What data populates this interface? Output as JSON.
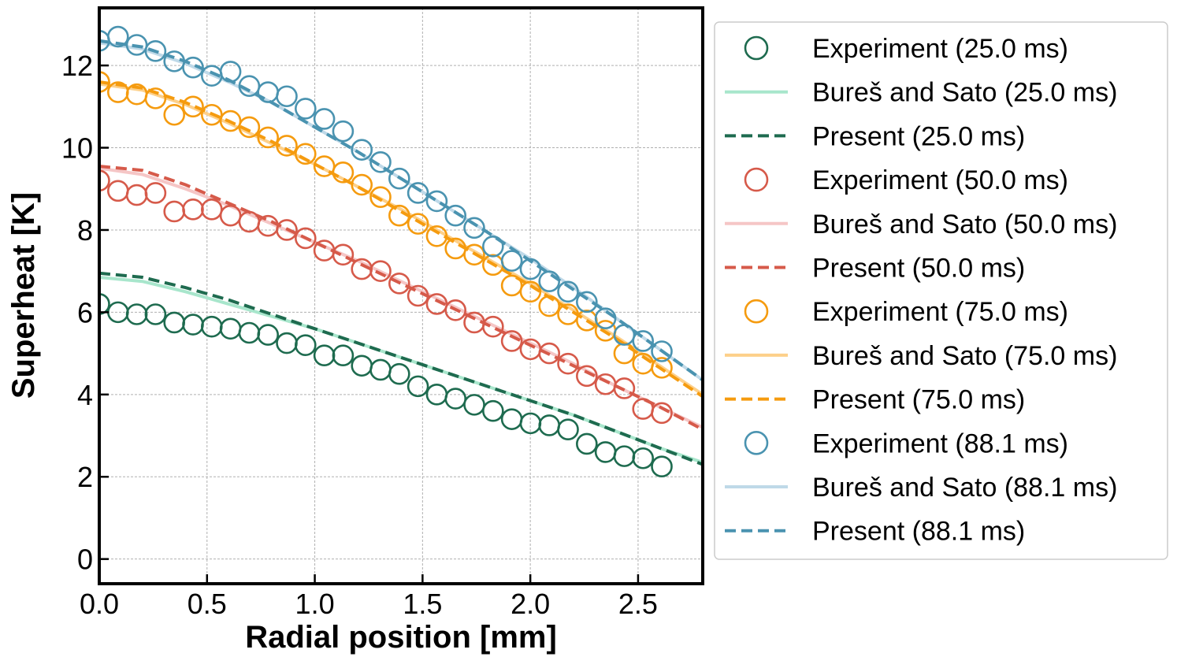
{
  "chart_data": {
    "type": "scatter",
    "xlabel": "Radial position [mm]",
    "ylabel": "Superheat [K]",
    "xlim": [
      0.0,
      2.8
    ],
    "ylim": [
      -0.6,
      13.4
    ],
    "xticks": [
      "0.0",
      "0.5",
      "1.0",
      "1.5",
      "2.0",
      "2.5"
    ],
    "xtick_values": [
      0.0,
      0.5,
      1.0,
      1.5,
      2.0,
      2.5
    ],
    "yticks": [
      "0",
      "2",
      "4",
      "6",
      "8",
      "10",
      "12"
    ],
    "ytick_values": [
      0,
      2,
      4,
      6,
      8,
      10,
      12
    ],
    "grid": true,
    "legend_position": "right, outside plot area",
    "experiment_x": [
      0.0,
      0.087,
      0.174,
      0.261,
      0.348,
      0.435,
      0.522,
      0.609,
      0.696,
      0.783,
      0.87,
      0.957,
      1.044,
      1.131,
      1.218,
      1.305,
      1.392,
      1.479,
      1.566,
      1.653,
      1.74,
      1.827,
      1.914,
      2.001,
      2.088,
      2.175,
      2.262,
      2.349,
      2.436,
      2.523,
      2.61
    ],
    "series": [
      {
        "name": "Experiment (25.0 ms)",
        "kind": "experiment",
        "color": "#1e6b4f",
        "values": [
          6.2,
          6.0,
          5.95,
          5.95,
          5.75,
          5.7,
          5.65,
          5.6,
          5.5,
          5.45,
          5.25,
          5.2,
          4.95,
          4.95,
          4.7,
          4.6,
          4.5,
          4.2,
          4.0,
          3.9,
          3.75,
          3.6,
          3.4,
          3.3,
          3.25,
          3.15,
          2.8,
          2.6,
          2.5,
          2.45,
          2.25
        ]
      },
      {
        "name": "Bureš and Sato (25.0 ms)",
        "kind": "model",
        "color": "#a8e6cc",
        "x": [
          0.0,
          0.2,
          0.4,
          0.6,
          0.8,
          1.0,
          1.2,
          1.4,
          1.6,
          1.8,
          2.0,
          2.2,
          2.4,
          2.6,
          2.8
        ],
        "values": [
          6.85,
          6.75,
          6.5,
          6.2,
          5.9,
          5.6,
          5.25,
          4.9,
          4.55,
          4.2,
          3.85,
          3.5,
          3.1,
          2.7,
          2.35
        ]
      },
      {
        "name": "Present (25.0 ms)",
        "kind": "present",
        "color": "#1e6b4f",
        "x": [
          0.0,
          0.2,
          0.4,
          0.6,
          0.8,
          1.0,
          1.2,
          1.4,
          1.6,
          1.8,
          2.0,
          2.2,
          2.4,
          2.6,
          2.8
        ],
        "values": [
          6.95,
          6.85,
          6.6,
          6.3,
          5.95,
          5.6,
          5.25,
          4.9,
          4.55,
          4.2,
          3.85,
          3.5,
          3.1,
          2.7,
          2.3
        ]
      },
      {
        "name": "Experiment (50.0 ms)",
        "kind": "experiment",
        "color": "#d65a4a",
        "values": [
          9.2,
          8.95,
          8.85,
          8.9,
          8.45,
          8.5,
          8.5,
          8.35,
          8.2,
          8.1,
          8.0,
          7.8,
          7.5,
          7.4,
          7.05,
          7.0,
          6.7,
          6.4,
          6.2,
          6.05,
          5.75,
          5.65,
          5.3,
          5.1,
          5.0,
          4.75,
          4.45,
          4.25,
          4.15,
          3.65,
          3.55
        ]
      },
      {
        "name": "Bureš and Sato (50.0 ms)",
        "kind": "model",
        "color": "#f5c6c6",
        "x": [
          0.0,
          0.2,
          0.4,
          0.6,
          0.8,
          1.0,
          1.2,
          1.4,
          1.6,
          1.8,
          2.0,
          2.2,
          2.4,
          2.6,
          2.8
        ],
        "values": [
          9.5,
          9.35,
          9.0,
          8.6,
          8.15,
          7.7,
          7.25,
          6.75,
          6.25,
          5.75,
          5.25,
          4.75,
          4.2,
          3.7,
          3.2
        ]
      },
      {
        "name": "Present (50.0 ms)",
        "kind": "present",
        "color": "#d65a4a",
        "x": [
          0.0,
          0.2,
          0.4,
          0.6,
          0.8,
          1.0,
          1.2,
          1.4,
          1.6,
          1.8,
          2.0,
          2.2,
          2.4,
          2.6,
          2.8
        ],
        "values": [
          9.55,
          9.45,
          9.1,
          8.65,
          8.2,
          7.7,
          7.2,
          6.7,
          6.2,
          5.7,
          5.2,
          4.7,
          4.2,
          3.7,
          3.15
        ]
      },
      {
        "name": "Experiment (75.0 ms)",
        "kind": "experiment",
        "color": "#f59b0f",
        "values": [
          11.6,
          11.35,
          11.3,
          11.2,
          10.8,
          11.0,
          10.8,
          10.65,
          10.5,
          10.25,
          10.05,
          9.85,
          9.55,
          9.4,
          9.1,
          8.8,
          8.35,
          8.15,
          7.85,
          7.55,
          7.4,
          7.15,
          6.65,
          6.5,
          6.15,
          5.95,
          5.8,
          5.55,
          5.0,
          4.75,
          4.65
        ]
      },
      {
        "name": "Bureš and Sato (75.0 ms)",
        "kind": "model",
        "color": "#fdd08a",
        "x": [
          0.0,
          0.2,
          0.4,
          0.6,
          0.8,
          1.0,
          1.2,
          1.4,
          1.6,
          1.8,
          2.0,
          2.2,
          2.4,
          2.6,
          2.8
        ],
        "values": [
          11.55,
          11.4,
          11.05,
          10.6,
          10.1,
          9.6,
          9.05,
          8.5,
          7.9,
          7.3,
          6.7,
          6.05,
          5.4,
          4.7,
          4.0
        ]
      },
      {
        "name": "Present (75.0 ms)",
        "kind": "present",
        "color": "#f59b0f",
        "x": [
          0.0,
          0.2,
          0.4,
          0.6,
          0.8,
          1.0,
          1.2,
          1.4,
          1.6,
          1.8,
          2.0,
          2.2,
          2.4,
          2.6,
          2.8
        ],
        "values": [
          11.6,
          11.45,
          11.1,
          10.65,
          10.15,
          9.6,
          9.05,
          8.45,
          7.85,
          7.25,
          6.65,
          6.0,
          5.35,
          4.65,
          3.95
        ]
      },
      {
        "name": "Experiment (88.1 ms)",
        "kind": "experiment",
        "color": "#4a93b0",
        "values": [
          12.6,
          12.7,
          12.5,
          12.35,
          12.1,
          11.95,
          11.75,
          11.85,
          11.5,
          11.35,
          11.25,
          10.95,
          10.7,
          10.4,
          9.95,
          9.65,
          9.25,
          8.9,
          8.7,
          8.35,
          8.05,
          7.6,
          7.25,
          7.05,
          6.75,
          6.5,
          6.25,
          5.85,
          5.45,
          5.3,
          5.05
        ]
      },
      {
        "name": "Bureš and Sato (88.1 ms)",
        "kind": "model",
        "color": "#bfd9e8",
        "x": [
          0.0,
          0.2,
          0.4,
          0.6,
          0.8,
          1.0,
          1.2,
          1.4,
          1.6,
          1.8,
          2.0,
          2.2,
          2.4,
          2.6,
          2.8
        ],
        "values": [
          12.55,
          12.4,
          12.05,
          11.6,
          11.1,
          10.5,
          9.9,
          9.25,
          8.6,
          7.95,
          7.3,
          6.6,
          5.85,
          5.1,
          4.35
        ]
      },
      {
        "name": "Present (88.1 ms)",
        "kind": "present",
        "color": "#4a93b0",
        "x": [
          0.0,
          0.2,
          0.4,
          0.6,
          0.8,
          1.0,
          1.2,
          1.4,
          1.6,
          1.8,
          2.0,
          2.2,
          2.4,
          2.6,
          2.8
        ],
        "values": [
          12.6,
          12.45,
          12.1,
          11.65,
          11.1,
          10.5,
          9.9,
          9.25,
          8.6,
          7.95,
          7.25,
          6.55,
          5.85,
          5.1,
          4.35
        ]
      }
    ]
  }
}
